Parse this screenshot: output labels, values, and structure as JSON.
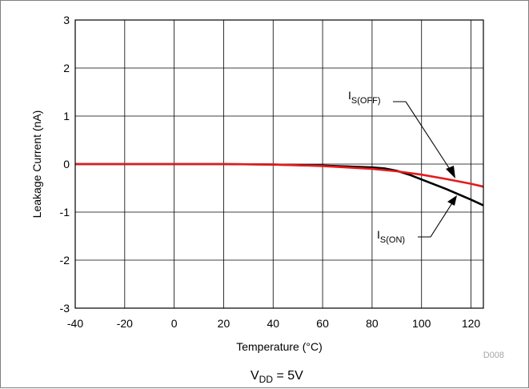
{
  "chart_data": {
    "type": "line",
    "xlabel": "Temperature (°C)",
    "ylabel": "Leakage Current (nA)",
    "xlim": [
      -40,
      125
    ],
    "ylim": [
      -3,
      3
    ],
    "xticks": [
      -40,
      -20,
      0,
      20,
      40,
      60,
      80,
      100,
      120
    ],
    "yticks": [
      3,
      2,
      1,
      0,
      -1,
      -2,
      -3
    ],
    "grid": true,
    "series": [
      {
        "name": "IS(ON)",
        "color": "#000000",
        "x": [
          -40,
          0,
          20,
          40,
          60,
          80,
          85,
          90,
          95,
          100,
          110,
          120,
          125
        ],
        "y": [
          0,
          0,
          0,
          -0.01,
          -0.03,
          -0.07,
          -0.09,
          -0.14,
          -0.22,
          -0.32,
          -0.52,
          -0.74,
          -0.86
        ]
      },
      {
        "name": "IS(OFF)",
        "color": "#e41a1c",
        "x": [
          -40,
          0,
          20,
          40,
          60,
          80,
          90,
          100,
          110,
          120,
          125
        ],
        "y": [
          0,
          0,
          0,
          -0.01,
          -0.04,
          -0.1,
          -0.15,
          -0.22,
          -0.31,
          -0.41,
          -0.47
        ]
      }
    ],
    "annotations": [
      {
        "label_main": "I",
        "label_sub": "S(OFF)",
        "series": "IS(OFF)"
      },
      {
        "label_main": "I",
        "label_sub": "S(ON)",
        "series": "IS(ON)"
      }
    ],
    "figure_id": "D008",
    "condition": {
      "main": "V",
      "sub": "DD",
      "rest": " = 5V"
    }
  }
}
